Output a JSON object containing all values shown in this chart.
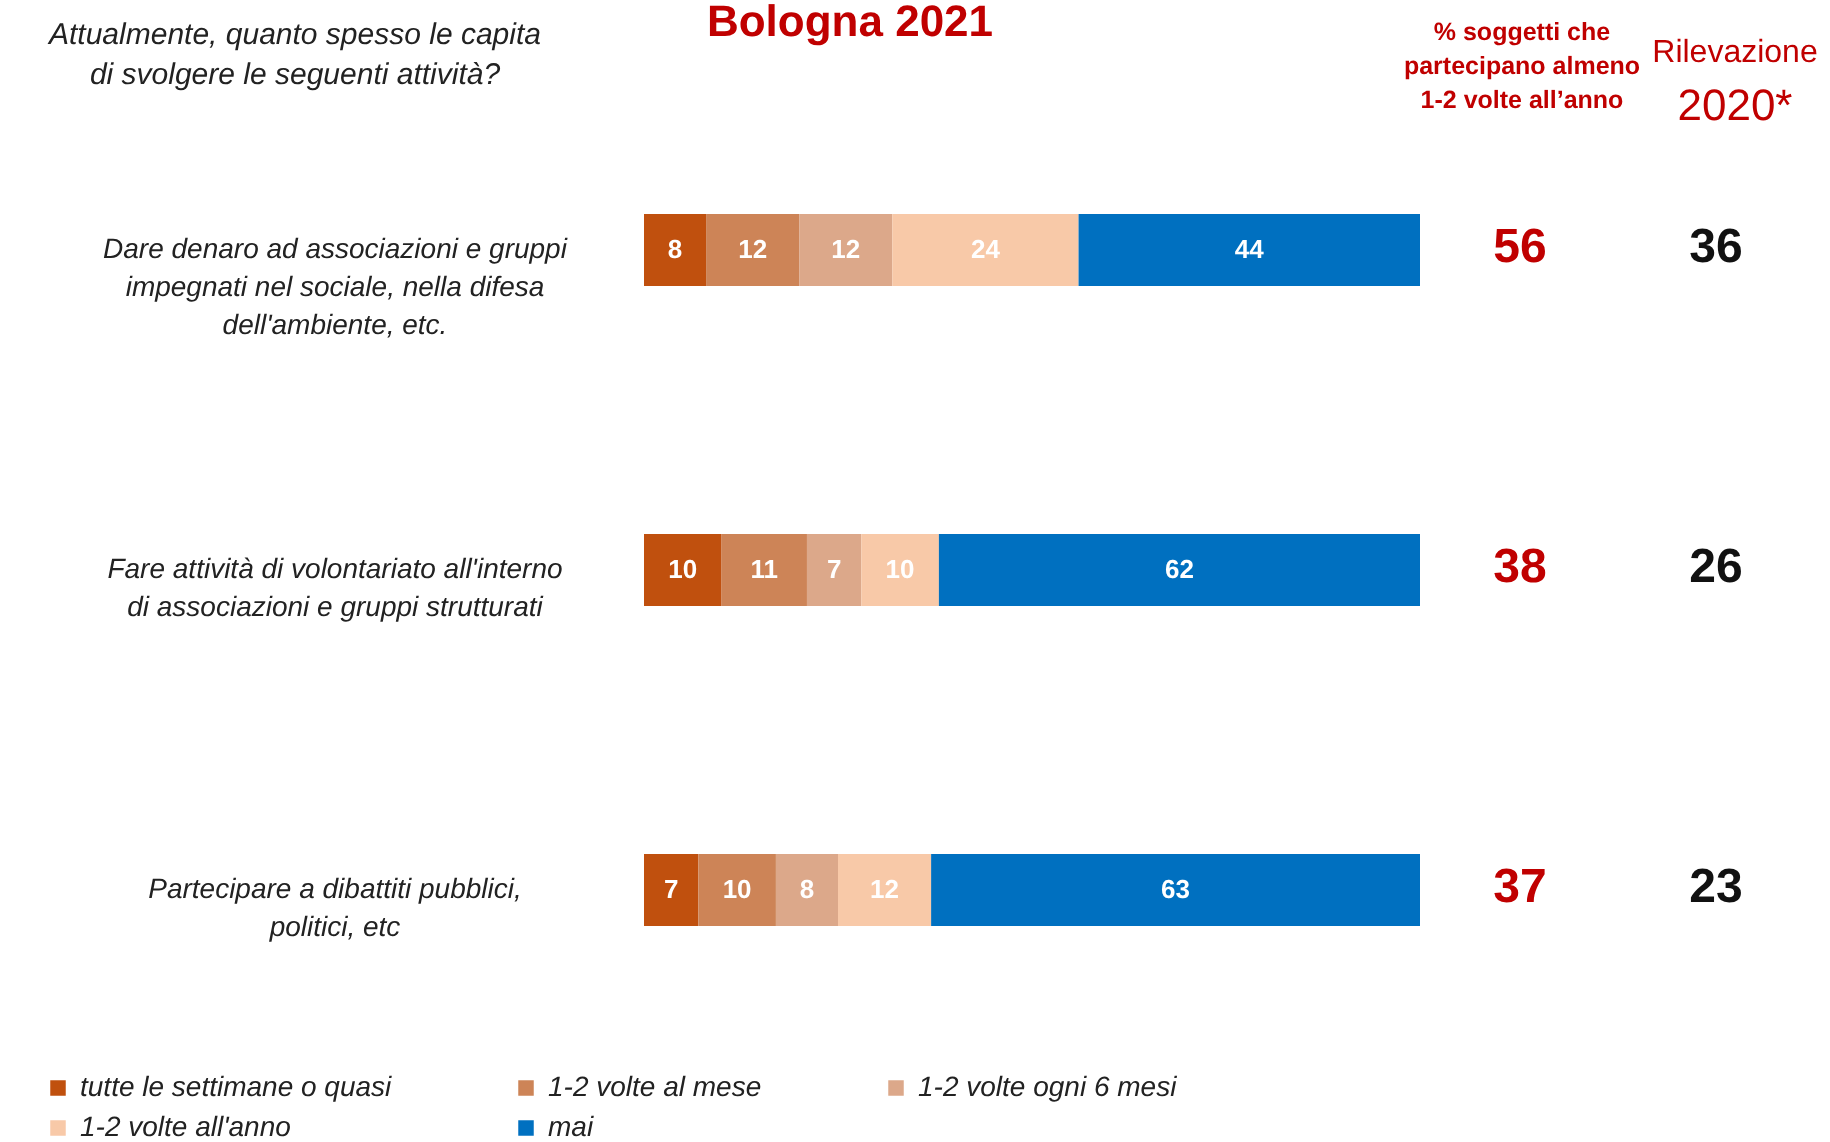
{
  "chart_data": {
    "type": "bar",
    "orientation": "horizontal",
    "stacked": true,
    "data_labels": true,
    "title": "Bologna 2021",
    "legend": "bottom",
    "categories": [
      "Dare denaro ad associazioni e gruppi impegnati nel sociale, nella difesa dell'ambiente, etc.",
      "Fare attività di volontariato all'interno di associazioni e gruppi strutturati",
      "Partecipare a dibattiti pubblici, politici, etc"
    ],
    "series": [
      {
        "name": "tutte le settimane o quasi",
        "color": "#c0500e",
        "values": [
          8,
          10,
          7
        ]
      },
      {
        "name": "1-2 volte al mese",
        "color": "#cd8457",
        "values": [
          12,
          11,
          10
        ]
      },
      {
        "name": "1-2 volte ogni 6 mesi",
        "color": "#dca88a",
        "values": [
          12,
          7,
          8
        ]
      },
      {
        "name": "1-2 volte all'anno",
        "color": "#f8c9a8",
        "values": [
          24,
          10,
          12
        ]
      },
      {
        "name": "mai",
        "color": "#0070c0",
        "values": [
          44,
          62,
          63
        ]
      }
    ],
    "annotations": [
      "Attualmente, quanto spesso le capita di svolgere le seguenti attività?",
      "% soggetti che partecipano almeno 1-2 volte all’anno",
      "Rilevazione 2020*",
      "56",
      "36",
      "38",
      "26",
      "37",
      "23"
    ]
  }
}
